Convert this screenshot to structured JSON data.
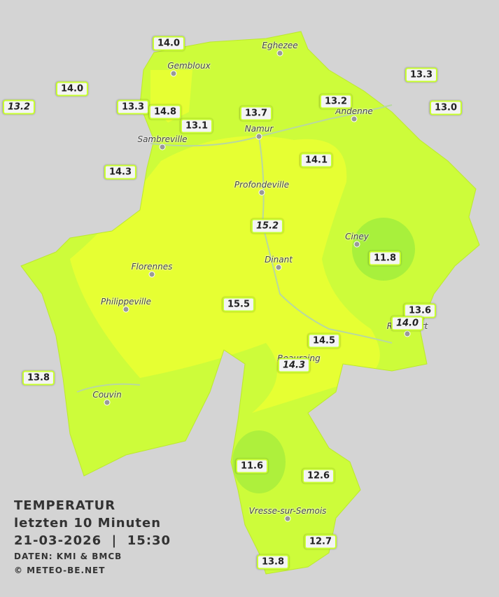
{
  "legend": {
    "title": "TEMPERATUR",
    "period": "letzten 10 Minuten",
    "datetime": "21-03-2026  |  15:30",
    "source": "DATEN: KMI & BMCB",
    "copyright": "© METEO-BE.NET"
  },
  "cities": [
    "Eghezee",
    "Gembloux",
    "Andenne",
    "Namur",
    "Sambreville",
    "Profondeville",
    "Ciney",
    "Florennes",
    "Dinant",
    "Philippeville",
    "Rochefort",
    "Beauraing",
    "Couvin",
    "Vresse-sur-Semois"
  ],
  "stations": [
    {
      "label": "14.0"
    },
    {
      "label": "14.0"
    },
    {
      "label": "13.2",
      "italic": true
    },
    {
      "label": "13.3"
    },
    {
      "label": "14.8"
    },
    {
      "label": "13.1"
    },
    {
      "label": "13.7"
    },
    {
      "label": "13.2"
    },
    {
      "label": "13.3"
    },
    {
      "label": "13.0"
    },
    {
      "label": "14.3"
    },
    {
      "label": "14.1"
    },
    {
      "label": "15.2",
      "italic": true
    },
    {
      "label": "11.8"
    },
    {
      "label": "15.5"
    },
    {
      "label": "13.6"
    },
    {
      "label": "14.0",
      "italic": true
    },
    {
      "label": "14.5"
    },
    {
      "label": "14.3",
      "italic": true
    },
    {
      "label": "13.8"
    },
    {
      "label": "11.6"
    },
    {
      "label": "12.6"
    },
    {
      "label": "12.7"
    },
    {
      "label": "13.8"
    }
  ]
}
